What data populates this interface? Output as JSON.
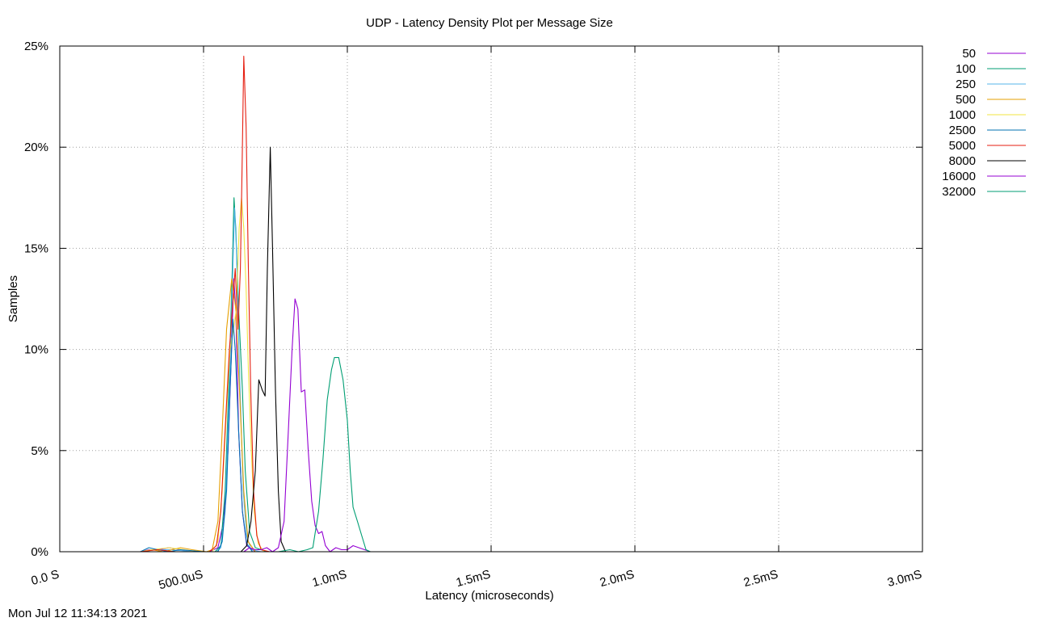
{
  "chart_data": {
    "type": "line",
    "title": "UDP - Latency Density Plot per Message Size",
    "xlabel": "Latency (microseconds)",
    "ylabel": "Samples",
    "xlim": [
      0,
      3000
    ],
    "ylim": [
      0,
      25
    ],
    "x_ticks": [
      {
        "value": 0,
        "label": "0.0 S"
      },
      {
        "value": 500,
        "label": "500.0uS"
      },
      {
        "value": 1000,
        "label": "1.0mS"
      },
      {
        "value": 1500,
        "label": "1.5mS"
      },
      {
        "value": 2000,
        "label": "2.0mS"
      },
      {
        "value": 2500,
        "label": "2.5mS"
      },
      {
        "value": 3000,
        "label": "3.0mS"
      }
    ],
    "y_ticks": [
      {
        "value": 0,
        "label": "0%"
      },
      {
        "value": 5,
        "label": "5%"
      },
      {
        "value": 10,
        "label": "10%"
      },
      {
        "value": 15,
        "label": "15%"
      },
      {
        "value": 20,
        "label": "20%"
      },
      {
        "value": 25,
        "label": "25%"
      }
    ],
    "grid": true,
    "legend_position": "outside-top-right",
    "series": [
      {
        "name": "50",
        "color": "#9400d3",
        "points": [
          [
            280,
            0
          ],
          [
            310,
            0.1
          ],
          [
            340,
            0.1
          ],
          [
            380,
            0.2
          ],
          [
            420,
            0.1
          ],
          [
            470,
            0
          ],
          [
            520,
            0
          ],
          [
            550,
            0.2
          ],
          [
            570,
            1.5
          ],
          [
            585,
            5
          ],
          [
            595,
            9
          ],
          [
            605,
            13.5
          ],
          [
            612,
            12
          ],
          [
            622,
            6
          ],
          [
            635,
            2
          ],
          [
            650,
            0.3
          ],
          [
            680,
            0
          ],
          [
            720,
            0
          ],
          [
            800,
            0
          ],
          [
            900,
            0
          ],
          [
            1000,
            0
          ]
        ]
      },
      {
        "name": "100",
        "color": "#009e73",
        "points": [
          [
            280,
            0
          ],
          [
            340,
            0.1
          ],
          [
            400,
            0
          ],
          [
            540,
            0
          ],
          [
            560,
            0.3
          ],
          [
            575,
            3
          ],
          [
            590,
            9
          ],
          [
            600,
            14
          ],
          [
            606,
            17.5
          ],
          [
            612,
            16
          ],
          [
            622,
            12
          ],
          [
            635,
            8
          ],
          [
            645,
            4
          ],
          [
            660,
            1
          ],
          [
            680,
            0.2
          ],
          [
            720,
            0
          ],
          [
            800,
            0
          ],
          [
            1000,
            0
          ]
        ]
      },
      {
        "name": "250",
        "color": "#56b4e9",
        "points": [
          [
            280,
            0
          ],
          [
            320,
            0.1
          ],
          [
            380,
            0.1
          ],
          [
            470,
            0
          ],
          [
            545,
            0
          ],
          [
            560,
            0.2
          ],
          [
            575,
            2
          ],
          [
            590,
            8
          ],
          [
            600,
            13
          ],
          [
            608,
            17
          ],
          [
            614,
            15
          ],
          [
            625,
            9
          ],
          [
            638,
            3
          ],
          [
            650,
            0.8
          ],
          [
            665,
            0.1
          ],
          [
            700,
            0
          ],
          [
            800,
            0
          ],
          [
            1000,
            0
          ]
        ]
      },
      {
        "name": "500",
        "color": "#e69f00",
        "points": [
          [
            280,
            0
          ],
          [
            320,
            0.1
          ],
          [
            360,
            0
          ],
          [
            420,
            0.2
          ],
          [
            460,
            0.1
          ],
          [
            510,
            0
          ],
          [
            530,
            0.1
          ],
          [
            550,
            1.5
          ],
          [
            565,
            6
          ],
          [
            580,
            11
          ],
          [
            598,
            13.5
          ],
          [
            612,
            12
          ],
          [
            625,
            8
          ],
          [
            640,
            3
          ],
          [
            655,
            0.5
          ],
          [
            680,
            0
          ],
          [
            720,
            0
          ],
          [
            800,
            0
          ],
          [
            1000,
            0
          ]
        ]
      },
      {
        "name": "1000",
        "color": "#f0e442",
        "points": [
          [
            280,
            0
          ],
          [
            320,
            0.1
          ],
          [
            380,
            0.2
          ],
          [
            430,
            0.1
          ],
          [
            480,
            0
          ],
          [
            530,
            0
          ],
          [
            550,
            0.5
          ],
          [
            565,
            3
          ],
          [
            580,
            7
          ],
          [
            592,
            10
          ],
          [
            604,
            11
          ],
          [
            614,
            12
          ],
          [
            624,
            16
          ],
          [
            632,
            17.5
          ],
          [
            640,
            16
          ],
          [
            648,
            13
          ],
          [
            656,
            9
          ],
          [
            666,
            5
          ],
          [
            676,
            2
          ],
          [
            690,
            0.4
          ],
          [
            710,
            0
          ],
          [
            800,
            0
          ],
          [
            1000,
            0
          ]
        ]
      },
      {
        "name": "2500",
        "color": "#0072b2",
        "points": [
          [
            280,
            0
          ],
          [
            310,
            0.2
          ],
          [
            340,
            0.1
          ],
          [
            380,
            0
          ],
          [
            420,
            0.1
          ],
          [
            500,
            0
          ],
          [
            550,
            0
          ],
          [
            565,
            0.5
          ],
          [
            580,
            3
          ],
          [
            592,
            8
          ],
          [
            602,
            11.5
          ],
          [
            610,
            10
          ],
          [
            622,
            6
          ],
          [
            635,
            2
          ],
          [
            650,
            0.4
          ],
          [
            670,
            0
          ],
          [
            720,
            0
          ],
          [
            800,
            0
          ],
          [
            1000,
            0
          ]
        ]
      },
      {
        "name": "5000",
        "color": "#e51e10",
        "points": [
          [
            280,
            0
          ],
          [
            340,
            0.1
          ],
          [
            400,
            0
          ],
          [
            520,
            0
          ],
          [
            545,
            0.3
          ],
          [
            560,
            2
          ],
          [
            575,
            6
          ],
          [
            590,
            10
          ],
          [
            600,
            12
          ],
          [
            610,
            14
          ],
          [
            620,
            11
          ],
          [
            628,
            14
          ],
          [
            634,
            19
          ],
          [
            640,
            24.5
          ],
          [
            648,
            21
          ],
          [
            656,
            14
          ],
          [
            664,
            8
          ],
          [
            674,
            3
          ],
          [
            685,
            0.8
          ],
          [
            700,
            0.1
          ],
          [
            730,
            0
          ],
          [
            800,
            0
          ],
          [
            1000,
            0
          ]
        ]
      },
      {
        "name": "8000",
        "color": "#000000",
        "points": [
          [
            280,
            0
          ],
          [
            500,
            0
          ],
          [
            590,
            0
          ],
          [
            630,
            0
          ],
          [
            650,
            0.3
          ],
          [
            665,
            1.5
          ],
          [
            680,
            4
          ],
          [
            692,
            8.5
          ],
          [
            704,
            8
          ],
          [
            714,
            7.7
          ],
          [
            722,
            14
          ],
          [
            732,
            20
          ],
          [
            740,
            15
          ],
          [
            750,
            8
          ],
          [
            760,
            3
          ],
          [
            770,
            0.5
          ],
          [
            785,
            0
          ],
          [
            800,
            0
          ],
          [
            1000,
            0
          ]
        ]
      },
      {
        "name": "16000",
        "color": "#9400d3",
        "points": [
          [
            280,
            0
          ],
          [
            600,
            0
          ],
          [
            640,
            0
          ],
          [
            660,
            0.2
          ],
          [
            680,
            0.1
          ],
          [
            700,
            0.1
          ],
          [
            720,
            0.2
          ],
          [
            740,
            0
          ],
          [
            760,
            0.2
          ],
          [
            780,
            1.5
          ],
          [
            795,
            6
          ],
          [
            808,
            10
          ],
          [
            818,
            12.5
          ],
          [
            828,
            12
          ],
          [
            840,
            7.9
          ],
          [
            852,
            8
          ],
          [
            864,
            5
          ],
          [
            876,
            2.5
          ],
          [
            888,
            1.3
          ],
          [
            900,
            0.9
          ],
          [
            912,
            1
          ],
          [
            924,
            0.3
          ],
          [
            940,
            0
          ],
          [
            960,
            0.2
          ],
          [
            980,
            0.1
          ],
          [
            1000,
            0.1
          ],
          [
            1020,
            0.3
          ],
          [
            1040,
            0.2
          ],
          [
            1060,
            0.1
          ],
          [
            1080,
            0
          ],
          [
            1100,
            0
          ]
        ]
      },
      {
        "name": "32000",
        "color": "#009e73",
        "points": [
          [
            600,
            0
          ],
          [
            700,
            0
          ],
          [
            760,
            0
          ],
          [
            800,
            0.1
          ],
          [
            830,
            0
          ],
          [
            860,
            0.1
          ],
          [
            880,
            0.2
          ],
          [
            900,
            2
          ],
          [
            915,
            4.5
          ],
          [
            930,
            7.5
          ],
          [
            945,
            9
          ],
          [
            955,
            9.6
          ],
          [
            970,
            9.6
          ],
          [
            985,
            8.5
          ],
          [
            1000,
            6.5
          ],
          [
            1010,
            4
          ],
          [
            1020,
            2.2
          ],
          [
            1035,
            1.5
          ],
          [
            1050,
            0.8
          ],
          [
            1065,
            0.1
          ],
          [
            1080,
            0
          ],
          [
            1100,
            0
          ]
        ]
      }
    ]
  },
  "footer": {
    "timestamp": "Mon Jul 12 11:34:13 2021"
  }
}
